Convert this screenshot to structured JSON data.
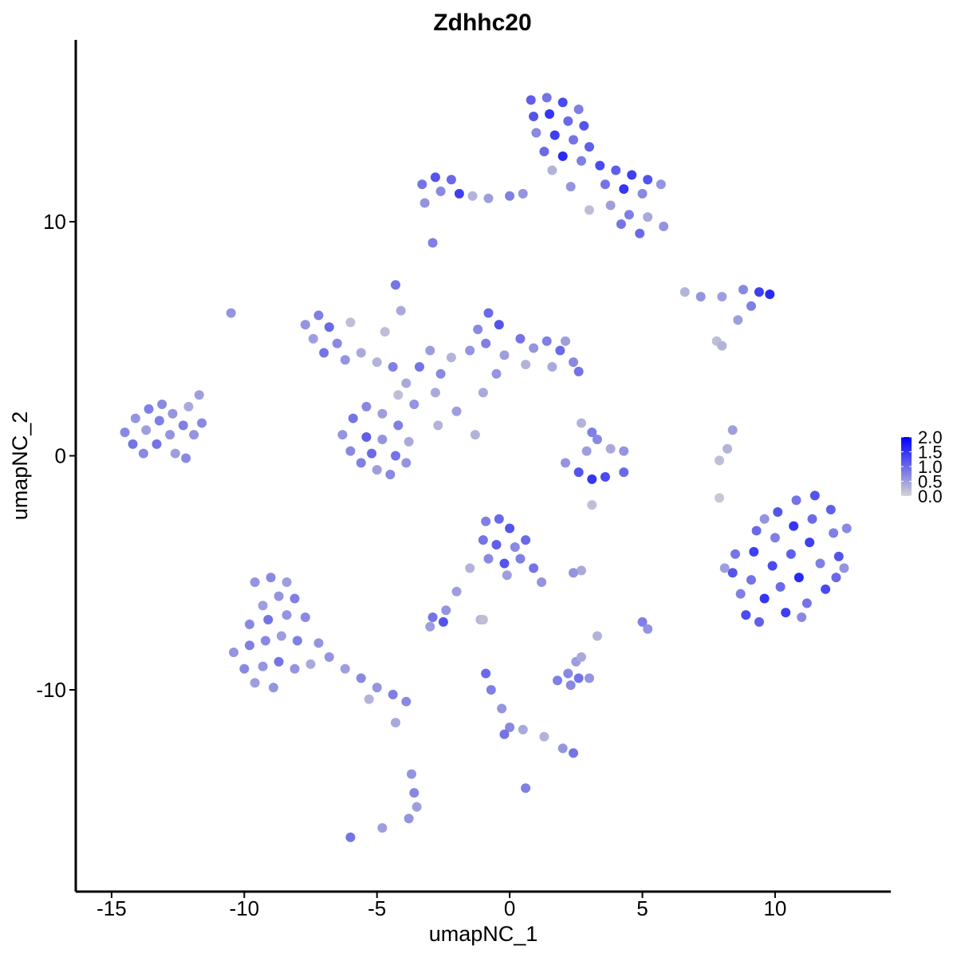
{
  "chart_data": {
    "type": "scatter",
    "title": "Zdhhc20",
    "x_label": "umapNC_1",
    "y_label": "umapNC_2",
    "xlim": [
      -16.35,
      14.36
    ],
    "ylim": [
      -18.62,
      17.77
    ],
    "xticks": [
      -15,
      -10,
      -5,
      0,
      5,
      10
    ],
    "yticks": [
      -10,
      0,
      10
    ],
    "clim": [
      0,
      2
    ],
    "cticks": [
      {
        "value": 0,
        "label": "0.0"
      },
      {
        "value": 0.5,
        "label": "0.5"
      },
      {
        "value": 1,
        "label": "1.0"
      },
      {
        "value": 1.5,
        "label": "1.5"
      },
      {
        "value": 2,
        "label": "2.0"
      }
    ],
    "low_color": "#d3d3d3",
    "high_color": "#0000ff",
    "x": [
      0.8,
      1.4,
      2.0,
      2.6,
      0.9,
      1.5,
      2.2,
      2.8,
      1.0,
      1.7,
      2.4,
      3.0,
      1.3,
      2.0,
      2.7,
      3.4,
      4.0,
      4.6,
      5.2,
      5.7,
      3.6,
      4.3,
      5.0,
      3.8,
      4.5,
      5.2,
      5.8,
      4.9,
      4.2,
      1.6,
      2.3,
      3.0,
      -3.3,
      -2.8,
      -2.2,
      -2.6,
      -1.9,
      -1.4,
      -0.8,
      0.0,
      0.5,
      -3.2,
      -2.9,
      -7.7,
      -7.2,
      -6.8,
      -7.4,
      -6.5,
      -6.0,
      -5.6,
      -7.0,
      -6.2,
      -5.0,
      -4.4,
      -3.9,
      -3.4,
      -3.0,
      -2.6,
      -4.2,
      -3.6,
      -2.8,
      -2.2,
      -4.7,
      -4.3,
      -4.1,
      -2.7,
      -1.3,
      -2.0,
      -6.3,
      -5.9,
      -5.4,
      -4.8,
      -4.2,
      -3.8,
      -6.0,
      -5.4,
      -4.8,
      -4.3,
      -5.6,
      -5.0,
      -4.5,
      -3.9,
      -5.2,
      -1.2,
      -0.8,
      -0.4,
      -1.5,
      -0.9,
      -0.2,
      0.4,
      0.9,
      1.4,
      1.9,
      2.4,
      2.6,
      1.6,
      0.6,
      -0.5,
      -1.0,
      2.1,
      -14.5,
      -14.1,
      -13.6,
      -13.1,
      -14.2,
      -13.7,
      -13.2,
      -12.7,
      -13.8,
      -13.3,
      -12.8,
      -12.3,
      -12.6,
      -12.2,
      -11.9,
      -11.6,
      -11.7,
      -12.1,
      -10.5,
      8.5,
      8.4,
      8.7,
      8.9,
      9.4,
      9.3,
      9.2,
      9.1,
      9.6,
      10.1,
      10.0,
      9.9,
      10.2,
      10.4,
      10.8,
      10.7,
      10.6,
      10.9,
      11.2,
      11.5,
      11.4,
      11.3,
      11.7,
      11.9,
      12.1,
      12.2,
      12.4,
      12.3,
      12.7,
      9.6,
      8.1,
      12.6,
      11.0,
      8.4,
      8.2,
      7.9,
      7.9,
      -9.6,
      -9.0,
      -8.4,
      -8.1,
      -8.7,
      -9.3,
      -9.8,
      -9.1,
      -8.4,
      -7.7,
      -10.4,
      -9.8,
      -9.2,
      -8.6,
      -8.0,
      -7.2,
      -10.0,
      -9.3,
      -8.7,
      -8.1,
      -7.5,
      -9.6,
      -8.9,
      -6.8,
      -6.2,
      -5.6,
      -5.0,
      -4.4,
      -3.9,
      -5.3,
      -4.3,
      -3.7,
      -3.6,
      -3.5,
      -3.8,
      -6.0,
      -4.8,
      -0.9,
      -0.4,
      0.0,
      -1.0,
      -0.5,
      0.2,
      0.6,
      -0.8,
      -0.2,
      0.4,
      0.9,
      1.2,
      -0.1,
      -1.5,
      -2.0,
      -2.4,
      -2.9,
      -2.5,
      -3.0,
      -1.1,
      2.7,
      2.4,
      2.1,
      2.6,
      3.1,
      3.6,
      4.3,
      2.9,
      3.3,
      3.8,
      4.3,
      2.7,
      3.1,
      3.1,
      6.6,
      7.2,
      8.0,
      8.8,
      9.4,
      9.8,
      9.1,
      8.6,
      7.8,
      8.0,
      1.8,
      2.2,
      2.6,
      3.0,
      2.3,
      2.5,
      2.7,
      5.0,
      5.2,
      3.3,
      -0.9,
      -0.7,
      -0.3,
      0.0,
      -0.2,
      0.5,
      1.3,
      2.0,
      2.4,
      0.6,
      -1.0
    ],
    "y": [
      15.2,
      15.3,
      15.1,
      14.8,
      14.5,
      14.6,
      14.3,
      14.1,
      13.8,
      13.7,
      13.5,
      13.2,
      13.0,
      12.8,
      12.6,
      12.4,
      12.2,
      12.0,
      11.8,
      11.6,
      11.6,
      11.4,
      11.2,
      10.7,
      10.3,
      10.2,
      9.8,
      9.5,
      9.9,
      12.2,
      11.5,
      10.5,
      11.6,
      11.9,
      11.8,
      11.3,
      11.2,
      11.1,
      11.0,
      11.1,
      11.2,
      10.8,
      9.1,
      5.6,
      6.0,
      5.5,
      5.0,
      4.8,
      5.7,
      4.4,
      4.4,
      4.1,
      4.0,
      3.8,
      3.1,
      3.8,
      4.5,
      3.5,
      2.6,
      2.2,
      2.7,
      4.2,
      5.3,
      7.3,
      6.2,
      1.3,
      0.9,
      1.9,
      0.9,
      1.6,
      2.1,
      1.8,
      1.3,
      0.6,
      0.2,
      0.8,
      0.7,
      0.0,
      -0.3,
      -0.6,
      -0.8,
      -0.3,
      0.1,
      5.4,
      6.1,
      5.6,
      4.5,
      4.8,
      4.3,
      5.0,
      4.6,
      4.9,
      4.5,
      4.0,
      3.6,
      3.8,
      3.9,
      3.5,
      2.7,
      4.9,
      1.0,
      1.6,
      2.0,
      2.2,
      0.5,
      1.1,
      1.5,
      1.8,
      0.1,
      0.5,
      0.9,
      1.3,
      0.1,
      -0.1,
      0.9,
      1.4,
      2.6,
      2.1,
      6.1,
      -4.2,
      -5.0,
      -5.9,
      -6.8,
      -7.1,
      -3.2,
      -4.1,
      -5.3,
      -6.1,
      -2.4,
      -3.5,
      -4.7,
      -5.6,
      -6.7,
      -1.9,
      -3.0,
      -4.2,
      -5.2,
      -6.3,
      -1.7,
      -2.7,
      -3.7,
      -4.6,
      -5.7,
      -2.3,
      -3.3,
      -4.3,
      -5.2,
      -3.1,
      -2.7,
      -4.8,
      -4.8,
      -6.9,
      1.1,
      0.3,
      -0.2,
      -1.8,
      -5.4,
      -5.2,
      -5.4,
      -6.1,
      -6.0,
      -6.4,
      -7.2,
      -7.0,
      -6.8,
      -6.9,
      -8.4,
      -8.1,
      -7.9,
      -7.7,
      -7.9,
      -8.0,
      -9.1,
      -9.0,
      -8.8,
      -9.1,
      -8.9,
      -9.7,
      -9.9,
      -8.6,
      -9.1,
      -9.5,
      -9.9,
      -10.2,
      -10.5,
      -10.4,
      -11.4,
      -13.6,
      -14.4,
      -15.0,
      -15.5,
      -16.3,
      -15.9,
      -2.8,
      -2.7,
      -3.1,
      -3.6,
      -3.8,
      -3.9,
      -3.6,
      -4.4,
      -4.6,
      -4.4,
      -4.8,
      -5.4,
      -5.1,
      -4.8,
      -5.8,
      -6.6,
      -6.9,
      -7.1,
      -7.3,
      -7.0,
      -4.9,
      -5.0,
      -0.3,
      -0.7,
      -1.0,
      -0.9,
      -0.7,
      0.2,
      0.7,
      0.3,
      0.2,
      1.4,
      1.0,
      -2.1,
      7.0,
      6.8,
      6.8,
      7.1,
      7.0,
      6.9,
      6.4,
      5.8,
      4.9,
      4.7,
      -9.6,
      -9.3,
      -9.5,
      -9.5,
      -9.8,
      -8.8,
      -8.6,
      -7.1,
      -7.4,
      -7.7,
      -9.3,
      -10.0,
      -10.8,
      -11.6,
      -11.9,
      -11.7,
      -12.0,
      -12.5,
      -12.7,
      -14.2,
      -7.0
    ],
    "values": [
      1.1,
      0.9,
      1.3,
      0.8,
      1.2,
      1.5,
      1.0,
      1.2,
      0.7,
      1.4,
      0.9,
      1.1,
      1.0,
      1.6,
      0.8,
      1.3,
      1.1,
      1.4,
      1.2,
      0.6,
      0.9,
      1.5,
      0.7,
      0.5,
      0.8,
      0.4,
      0.6,
      1.0,
      0.9,
      0.3,
      0.6,
      0.2,
      0.9,
      1.2,
      1.0,
      0.7,
      1.4,
      0.3,
      0.5,
      0.8,
      0.6,
      0.6,
      0.8,
      0.6,
      0.8,
      1.0,
      0.5,
      0.7,
      0.2,
      0.4,
      0.9,
      0.6,
      0.3,
      0.8,
      0.4,
      0.9,
      0.5,
      0.7,
      0.2,
      0.6,
      0.4,
      0.3,
      0.2,
      0.9,
      0.4,
      0.3,
      0.3,
      0.5,
      0.6,
      0.9,
      0.7,
      0.5,
      0.8,
      0.4,
      0.7,
      1.1,
      0.6,
      0.9,
      0.8,
      0.5,
      0.7,
      0.6,
      1.0,
      0.7,
      1.0,
      1.2,
      0.6,
      0.8,
      0.5,
      0.9,
      0.6,
      0.8,
      1.0,
      0.7,
      0.9,
      0.4,
      0.3,
      0.6,
      0.4,
      0.5,
      0.7,
      0.6,
      0.8,
      0.7,
      0.9,
      0.5,
      0.8,
      0.6,
      0.7,
      0.9,
      0.6,
      0.8,
      0.5,
      0.7,
      0.6,
      0.7,
      0.5,
      0.4,
      0.6,
      0.9,
      1.2,
      0.8,
      1.3,
      1.1,
      1.0,
      1.4,
      0.9,
      1.5,
      1.2,
      0.8,
      1.3,
      1.0,
      1.4,
      0.9,
      1.5,
      1.1,
      1.6,
      0.9,
      1.2,
      1.0,
      1.4,
      0.8,
      1.3,
      1.1,
      0.8,
      1.2,
      1.0,
      0.7,
      0.6,
      0.5,
      0.6,
      0.7,
      0.5,
      0.3,
      0.2,
      0.1,
      0.6,
      0.7,
      0.5,
      0.8,
      0.6,
      0.5,
      0.7,
      0.9,
      0.6,
      0.7,
      0.6,
      0.8,
      0.7,
      0.5,
      0.8,
      0.6,
      0.7,
      0.6,
      0.9,
      0.6,
      0.4,
      0.5,
      0.6,
      0.6,
      0.5,
      0.7,
      0.6,
      0.8,
      0.7,
      0.3,
      0.4,
      0.6,
      0.7,
      0.5,
      0.6,
      0.9,
      0.5,
      0.8,
      1.0,
      1.2,
      0.9,
      1.1,
      0.7,
      1.0,
      0.7,
      1.2,
      0.8,
      0.9,
      0.6,
      0.5,
      0.3,
      0.5,
      0.6,
      0.9,
      1.2,
      0.5,
      0.3,
      0.4,
      0.6,
      0.6,
      1.2,
      1.5,
      1.3,
      1.0,
      0.5,
      0.7,
      0.4,
      0.6,
      0.3,
      0.8,
      0.2,
      0.3,
      0.6,
      0.5,
      0.7,
      1.4,
      1.6,
      0.8,
      0.5,
      0.2,
      0.3,
      0.8,
      0.7,
      0.9,
      0.6,
      0.7,
      0.5,
      0.4,
      0.8,
      0.6,
      0.3,
      1.0,
      0.8,
      0.6,
      0.7,
      0.9,
      0.4,
      0.3,
      0.6,
      0.9,
      0.8,
      0.2
    ]
  }
}
